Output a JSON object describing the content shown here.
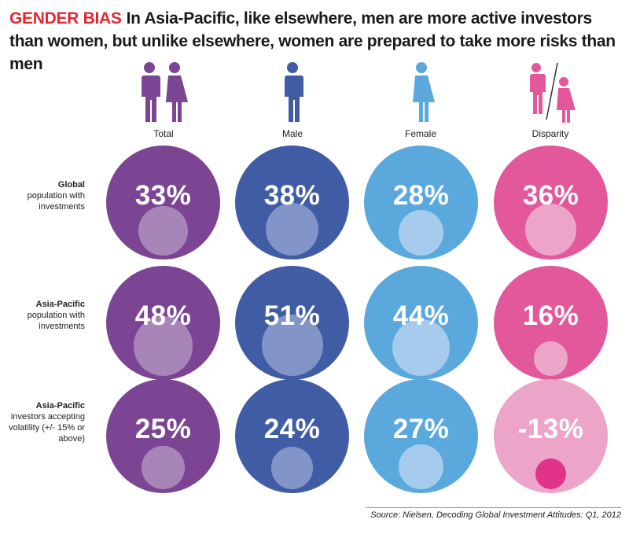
{
  "header": {
    "tag": "GENDER BIAS",
    "title": "In Asia-Pacific, like elsewhere, men are more active investors than women, but unlike elsewhere, women are prepared to take more risks than men"
  },
  "columns": [
    {
      "label": "Total",
      "icon": "male-female-icon",
      "color": "#7b4593",
      "inner_color": "#a885b9"
    },
    {
      "label": "Male",
      "icon": "male-icon",
      "color": "#405ca4",
      "inner_color": "#8394c8"
    },
    {
      "label": "Female",
      "icon": "female-icon",
      "color": "#5ba8dd",
      "inner_color": "#a6cbec"
    },
    {
      "label": "Disparity",
      "icon": "male-slash-female-icon",
      "color": "#e2589b",
      "inner_color": "#eda4c9"
    }
  ],
  "rows": [
    {
      "label_bold": "Global",
      "label_rest": "population with investments"
    },
    {
      "label_bold": "Asia-Pacific",
      "label_rest": "population with investments"
    },
    {
      "label_bold": "Asia-Pacific",
      "label_rest": "investors accepting volatility (+/- 15% or above)"
    }
  ],
  "chart_data": {
    "type": "bubble-matrix",
    "title": "GENDER BIAS In Asia-Pacific, like elsewhere, men are more active investors than women, but unlike elsewhere, women are prepared to take more risks than men",
    "categories": [
      "Total",
      "Male",
      "Female",
      "Disparity"
    ],
    "rows": [
      "Global population with investments",
      "Asia-Pacific population with investments",
      "Asia-Pacific investors accepting volatility (+/- 15% or above)"
    ],
    "values": [
      [
        33,
        38,
        28,
        36
      ],
      [
        48,
        51,
        44,
        16
      ],
      [
        25,
        24,
        27,
        -13
      ]
    ],
    "labels": [
      [
        "33%",
        "38%",
        "28%",
        "36%"
      ],
      [
        "48%",
        "51%",
        "44%",
        "16%"
      ],
      [
        "25%",
        "24%",
        "27%",
        "-13%"
      ]
    ],
    "negative_colors": {
      "outer": "#eda4c9",
      "inner": "#e0338a"
    }
  },
  "source": "Source: Nielsen, Decoding Global Investment Attitudes: Q1, 2012"
}
